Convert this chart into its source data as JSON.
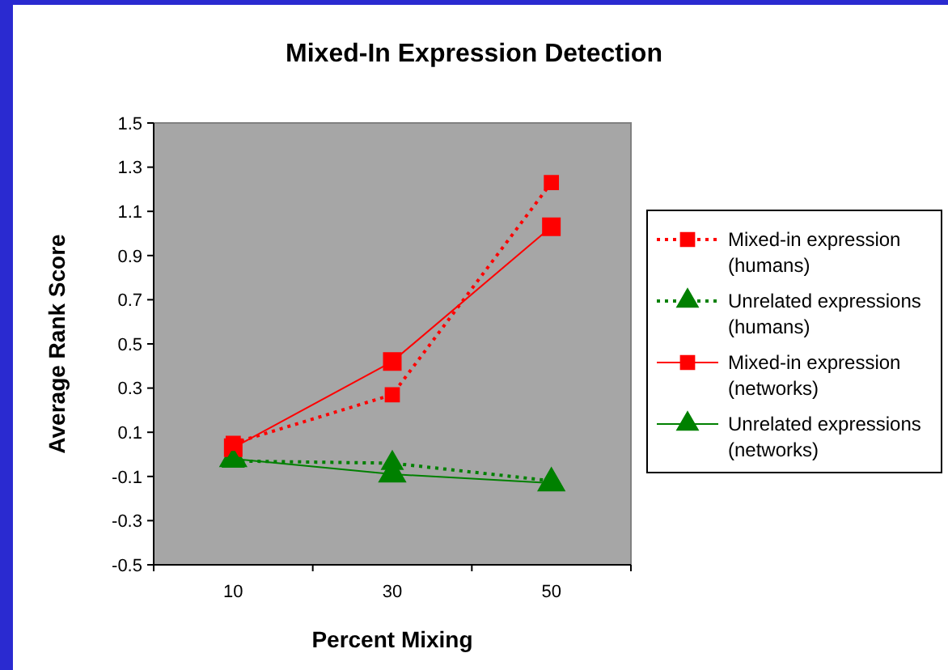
{
  "chart_data": {
    "type": "line",
    "title": "Mixed-In Expression Detection",
    "xlabel": "Percent Mixing",
    "ylabel": "Average Rank Score",
    "categories": [
      "10",
      "30",
      "50"
    ],
    "ylim": [
      -0.5,
      1.5
    ],
    "yticks": [
      -0.5,
      -0.3,
      -0.1,
      0.1,
      0.3,
      0.5,
      0.7,
      0.9,
      1.1,
      1.3,
      1.5
    ],
    "grid": false,
    "legend": "right",
    "series": [
      {
        "name": "Mixed-in expression (humans)",
        "color": "#ff0000",
        "values": [
          0.05,
          0.27,
          1.23
        ],
        "marker": "square",
        "line_style": "dotted"
      },
      {
        "name": "Unrelated expressions (humans)",
        "color": "#008000",
        "values": [
          -0.03,
          -0.04,
          -0.12
        ],
        "marker": "triangle",
        "line_style": "dotted"
      },
      {
        "name": "Mixed-in expression (networks)",
        "color": "#ff0000",
        "values": [
          0.03,
          0.42,
          1.03
        ],
        "marker": "square",
        "line_style": "solid"
      },
      {
        "name": "Unrelated expressions (networks)",
        "color": "#008000",
        "values": [
          -0.02,
          -0.09,
          -0.13
        ],
        "marker": "triangle",
        "line_style": "solid"
      }
    ]
  }
}
